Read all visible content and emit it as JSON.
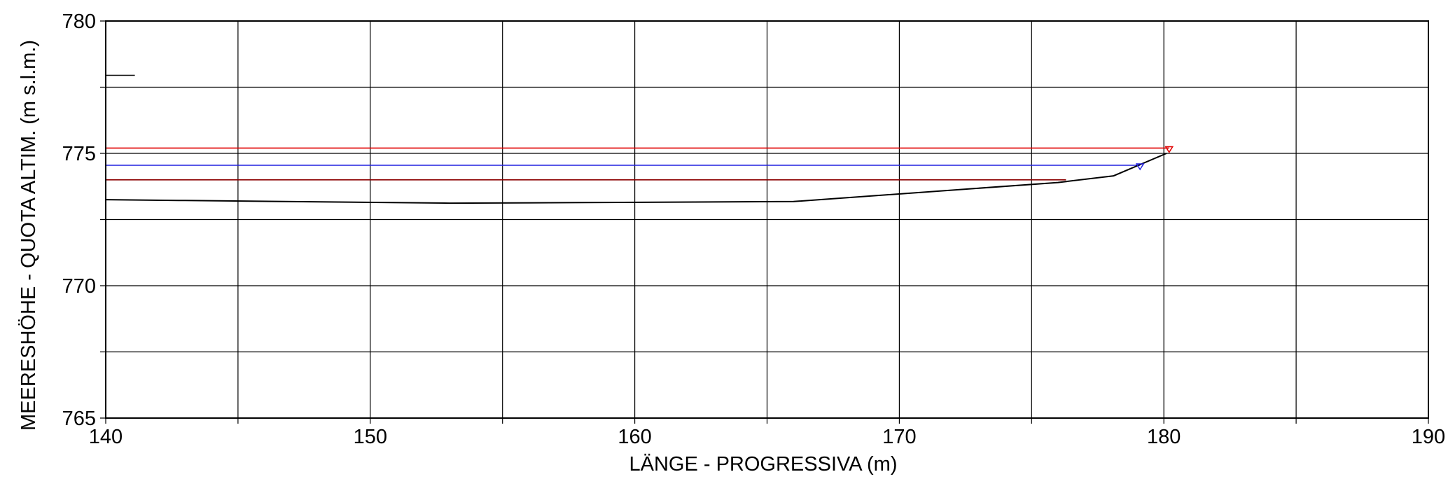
{
  "chart_data": {
    "type": "line",
    "xlabel": "LÄNGE - PROGRESSIVA  (m)",
    "ylabel": "MEERESHÖHE - QUOTA ALTIM.  (m s.l.m.)",
    "xlim": [
      140,
      190
    ],
    "ylim": [
      765,
      780
    ],
    "x_major_ticks": [
      140,
      150,
      160,
      170,
      180,
      190
    ],
    "x_minor_ticks": [
      145,
      155,
      165,
      175,
      185
    ],
    "y_major_ticks": [
      765,
      770,
      775,
      780
    ],
    "y_minor_ticks": [
      767.5,
      772.5,
      777.5
    ],
    "grid": true,
    "legend": "none",
    "colors": {
      "ground": "#000000",
      "water_red": "#e00000",
      "water_blue": "#2020e0",
      "level_darkred": "#8b0000",
      "grid": "#000000"
    },
    "series": [
      {
        "x": [
          140,
          143,
          153,
          158,
          166,
          176,
          178.1,
          180.1
        ],
        "y": [
          773.25,
          773.22,
          773.12,
          773.14,
          773.18,
          773.9,
          774.15,
          775.0
        ]
      },
      {
        "x": [
          140,
          176.3
        ],
        "y": [
          774.0,
          774.0
        ]
      },
      {
        "x": [
          140,
          179.1
        ],
        "y": [
          774.55,
          774.55
        ]
      },
      {
        "x": [
          140,
          180.2
        ],
        "y": [
          775.2,
          775.2
        ]
      },
      {
        "x": [
          140,
          141.1
        ],
        "y": [
          777.95,
          777.95
        ]
      }
    ],
    "markers": [
      {
        "symbol": "down-triangle",
        "x": 179.1,
        "y": 774.55,
        "color": "#2020e0"
      },
      {
        "symbol": "down-triangle",
        "x": 180.2,
        "y": 775.2,
        "color": "#e00000"
      }
    ]
  }
}
